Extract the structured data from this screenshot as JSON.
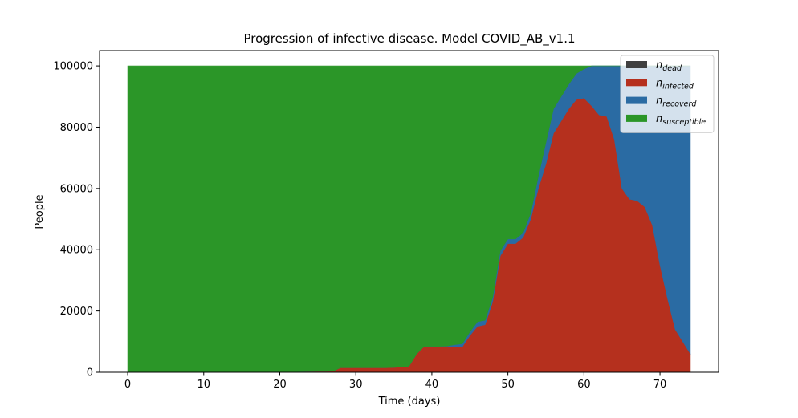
{
  "chart_data": {
    "type": "area",
    "stacked": true,
    "title": "Progression of infective disease. Model COVID_AB_v1.1",
    "xlabel": "Time (days)",
    "ylabel": "People",
    "xlim": [
      -3.7,
      77.7
    ],
    "ylim": [
      0,
      105000
    ],
    "xticks": [
      0,
      10,
      20,
      30,
      40,
      50,
      60,
      70
    ],
    "yticks": [
      0,
      20000,
      40000,
      60000,
      80000,
      100000
    ],
    "x": [
      0,
      1,
      2,
      3,
      4,
      5,
      6,
      7,
      8,
      9,
      10,
      11,
      12,
      13,
      14,
      15,
      16,
      17,
      18,
      19,
      20,
      21,
      22,
      23,
      24,
      25,
      26,
      27,
      28,
      29,
      30,
      31,
      32,
      33,
      34,
      35,
      36,
      37,
      38,
      39,
      40,
      41,
      42,
      43,
      44,
      45,
      46,
      47,
      48,
      49,
      50,
      51,
      52,
      53,
      54,
      55,
      56,
      57,
      58,
      59,
      60,
      61,
      62,
      63,
      64,
      65,
      66,
      67,
      68,
      69,
      70,
      71,
      72,
      73,
      74
    ],
    "series": [
      {
        "name": "dead",
        "label_main": "n",
        "label_sub": "dead",
        "color": "#404040",
        "values": [
          0,
          0,
          0,
          0,
          0,
          0,
          0,
          0,
          0,
          0,
          0,
          0,
          0,
          0,
          0,
          0,
          0,
          0,
          0,
          0,
          0,
          0,
          0,
          0,
          0,
          0,
          0,
          0,
          0,
          0,
          0,
          0,
          0,
          0,
          0,
          0,
          0,
          0,
          0,
          0,
          0,
          0,
          0,
          0,
          0,
          0,
          0,
          0,
          0,
          0,
          0,
          0,
          0,
          0,
          0,
          0,
          0,
          0,
          0,
          0,
          0,
          0,
          0,
          0,
          0,
          0,
          0,
          0,
          0,
          0,
          0,
          0,
          0,
          0,
          0
        ]
      },
      {
        "name": "infected",
        "label_main": "n",
        "label_sub": "infected",
        "color": "#b5301e",
        "values": [
          10,
          10,
          10,
          20,
          20,
          20,
          30,
          30,
          40,
          40,
          50,
          50,
          60,
          70,
          80,
          90,
          100,
          120,
          140,
          160,
          180,
          200,
          220,
          250,
          280,
          300,
          320,
          350,
          1500,
          1500,
          1500,
          1500,
          1500,
          1500,
          1500,
          1600,
          1700,
          2000,
          6000,
          8500,
          8500,
          8500,
          8500,
          8400,
          8300,
          12000,
          15000,
          15500,
          23000,
          38000,
          42000,
          42000,
          44000,
          50000,
          60000,
          68000,
          78000,
          82000,
          86000,
          89000,
          89500,
          87000,
          84000,
          83500,
          76000,
          60000,
          56500,
          56000,
          54000,
          48000,
          35000,
          24000,
          14000,
          10000,
          6000
        ]
      },
      {
        "name": "recoverd",
        "label_main": "n",
        "label_sub": "recoverd",
        "color": "#2a6ba3",
        "values": [
          0,
          0,
          0,
          0,
          0,
          0,
          0,
          0,
          0,
          0,
          0,
          0,
          0,
          0,
          0,
          0,
          0,
          0,
          0,
          0,
          0,
          0,
          0,
          0,
          0,
          0,
          0,
          0,
          0,
          0,
          0,
          0,
          0,
          0,
          0,
          0,
          0,
          0,
          0,
          0,
          0,
          0,
          100,
          600,
          1000,
          1200,
          1500,
          1500,
          1500,
          1700,
          1500,
          1500,
          1500,
          2000,
          4000,
          7000,
          8000,
          8000,
          8000,
          8500,
          9500,
          13000,
          16000,
          16500,
          24000,
          40000,
          43500,
          44000,
          46000,
          52000,
          65000,
          76000,
          86000,
          90000,
          94000
        ]
      },
      {
        "name": "susceptible",
        "label_main": "n",
        "label_sub": "susceptible",
        "color": "#2b9628",
        "values": [
          99990,
          99990,
          99990,
          99980,
          99980,
          99980,
          99970,
          99970,
          99960,
          99960,
          99950,
          99950,
          99940,
          99930,
          99920,
          99910,
          99900,
          99880,
          99860,
          99840,
          99820,
          99800,
          99780,
          99750,
          99720,
          99700,
          99680,
          99650,
          98500,
          98500,
          98500,
          98500,
          98500,
          98500,
          98500,
          98400,
          98300,
          98000,
          94000,
          91500,
          91500,
          91500,
          91400,
          91000,
          90700,
          86800,
          83500,
          83000,
          75500,
          60300,
          56500,
          56500,
          54500,
          48000,
          36000,
          25000,
          14000,
          10000,
          6000,
          2500,
          1000,
          0,
          0,
          0,
          0,
          0,
          0,
          0,
          0,
          0,
          0,
          0,
          0,
          0,
          0
        ]
      }
    ],
    "legend": {
      "placement": "top-right",
      "order": [
        "dead",
        "infected",
        "recoverd",
        "susceptible"
      ]
    }
  }
}
